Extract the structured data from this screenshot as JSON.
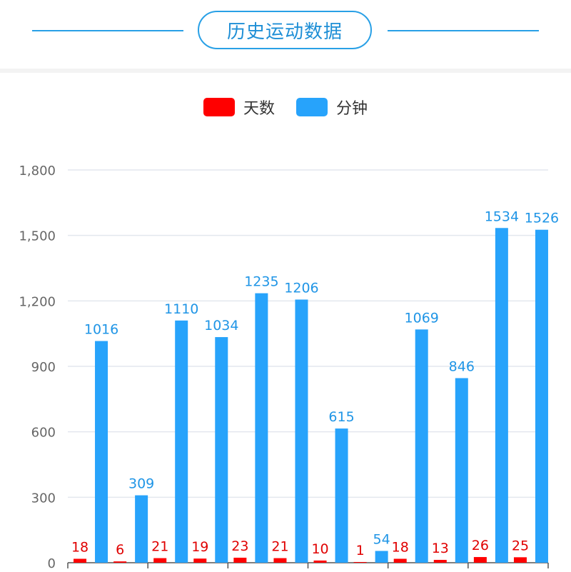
{
  "header": {
    "title": "历史运动数据"
  },
  "colors": {
    "accent": "#29a0e6",
    "days": "#ff0000",
    "minutes": "#27a3fb"
  },
  "chart_data": {
    "type": "bar",
    "categories": [
      "",
      "",
      "",
      "",
      "",
      "",
      "",
      "",
      "",
      "",
      "",
      ""
    ],
    "series": [
      {
        "name": "天数",
        "color": "#ff0000",
        "values": [
          18,
          6,
          21,
          19,
          23,
          21,
          10,
          1,
          18,
          13,
          26,
          25
        ]
      },
      {
        "name": "分钟",
        "color": "#27a3fb",
        "values": [
          1016,
          309,
          1110,
          1034,
          1235,
          1206,
          615,
          54,
          1069,
          846,
          1534,
          1526
        ]
      }
    ],
    "yticks": [
      "0",
      "300",
      "600",
      "900",
      "1,200",
      "1,500",
      "1,800"
    ],
    "ylim": [
      0,
      1800
    ],
    "grid": true,
    "legend_position": "top-center",
    "data_labels": true
  }
}
